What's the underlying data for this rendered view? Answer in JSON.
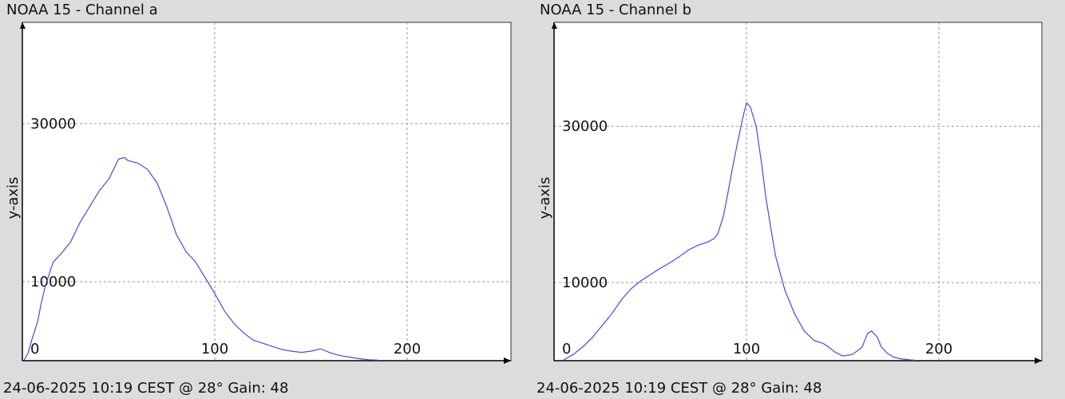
{
  "panels": [
    {
      "title": "NOAA 15 - Channel a",
      "footer": "24-06-2025 10:19 CEST @ 28° Gain: 48"
    },
    {
      "title": "NOAA 15 - Channel b",
      "footer": "24-06-2025 10:19 CEST @ 28° Gain: 48"
    }
  ],
  "colors": {
    "line": "#4a4ad8",
    "grid": "#9a9a9a",
    "plot_bg": "#ffffff",
    "window_bg": "#dcdcdc"
  },
  "chart_data": [
    {
      "type": "line",
      "title": "NOAA 15 - Channel a",
      "xlabel": "",
      "ylabel": "y-axis",
      "x_ticks": [
        0,
        100,
        200
      ],
      "y_ticks": [
        10000,
        30000
      ],
      "xlim": [
        0,
        255
      ],
      "ylim": [
        0,
        43000
      ],
      "grid": true,
      "x": [
        1,
        3,
        5,
        8,
        10,
        12,
        14,
        16,
        20,
        25,
        30,
        35,
        40,
        45,
        50,
        53,
        55,
        60,
        65,
        70,
        75,
        80,
        85,
        90,
        95,
        100,
        105,
        110,
        115,
        120,
        125,
        130,
        135,
        140,
        145,
        150,
        155,
        160,
        165,
        170,
        175,
        180,
        185
      ],
      "values": [
        100,
        1000,
        2700,
        5000,
        7500,
        9500,
        11000,
        12500,
        13500,
        15000,
        17500,
        19500,
        21500,
        23000,
        25500,
        25700,
        25300,
        25000,
        24200,
        22500,
        19500,
        16000,
        13800,
        12500,
        10500,
        8500,
        6300,
        4700,
        3500,
        2600,
        2200,
        1800,
        1400,
        1200,
        1050,
        1200,
        1500,
        1000,
        650,
        450,
        250,
        120,
        60
      ]
    },
    {
      "type": "line",
      "title": "NOAA 15 - Channel b",
      "xlabel": "",
      "ylabel": "y-axis",
      "x_ticks": [
        0,
        100,
        200
      ],
      "y_ticks": [
        10000,
        30000
      ],
      "xlim": [
        0,
        255
      ],
      "ylim": [
        0,
        43000
      ],
      "grid": true,
      "x": [
        5,
        10,
        15,
        20,
        25,
        30,
        35,
        40,
        45,
        50,
        55,
        60,
        65,
        70,
        75,
        80,
        83,
        85,
        88,
        90,
        93,
        95,
        98,
        100,
        102,
        105,
        108,
        110,
        113,
        115,
        120,
        125,
        130,
        135,
        140,
        143,
        146,
        150,
        155,
        160,
        163,
        165,
        168,
        170,
        173,
        176,
        180,
        185,
        188
      ],
      "values": [
        100,
        800,
        1800,
        3000,
        4500,
        6000,
        7800,
        9200,
        10200,
        11000,
        11800,
        12500,
        13300,
        14200,
        14800,
        15200,
        15600,
        16200,
        18500,
        21000,
        25000,
        27500,
        31000,
        33000,
        32500,
        30000,
        25000,
        21000,
        16500,
        13500,
        9000,
        6000,
        3800,
        2600,
        2200,
        1700,
        1100,
        600,
        800,
        1700,
        3500,
        3800,
        3000,
        1800,
        1000,
        500,
        250,
        100,
        50
      ]
    }
  ]
}
